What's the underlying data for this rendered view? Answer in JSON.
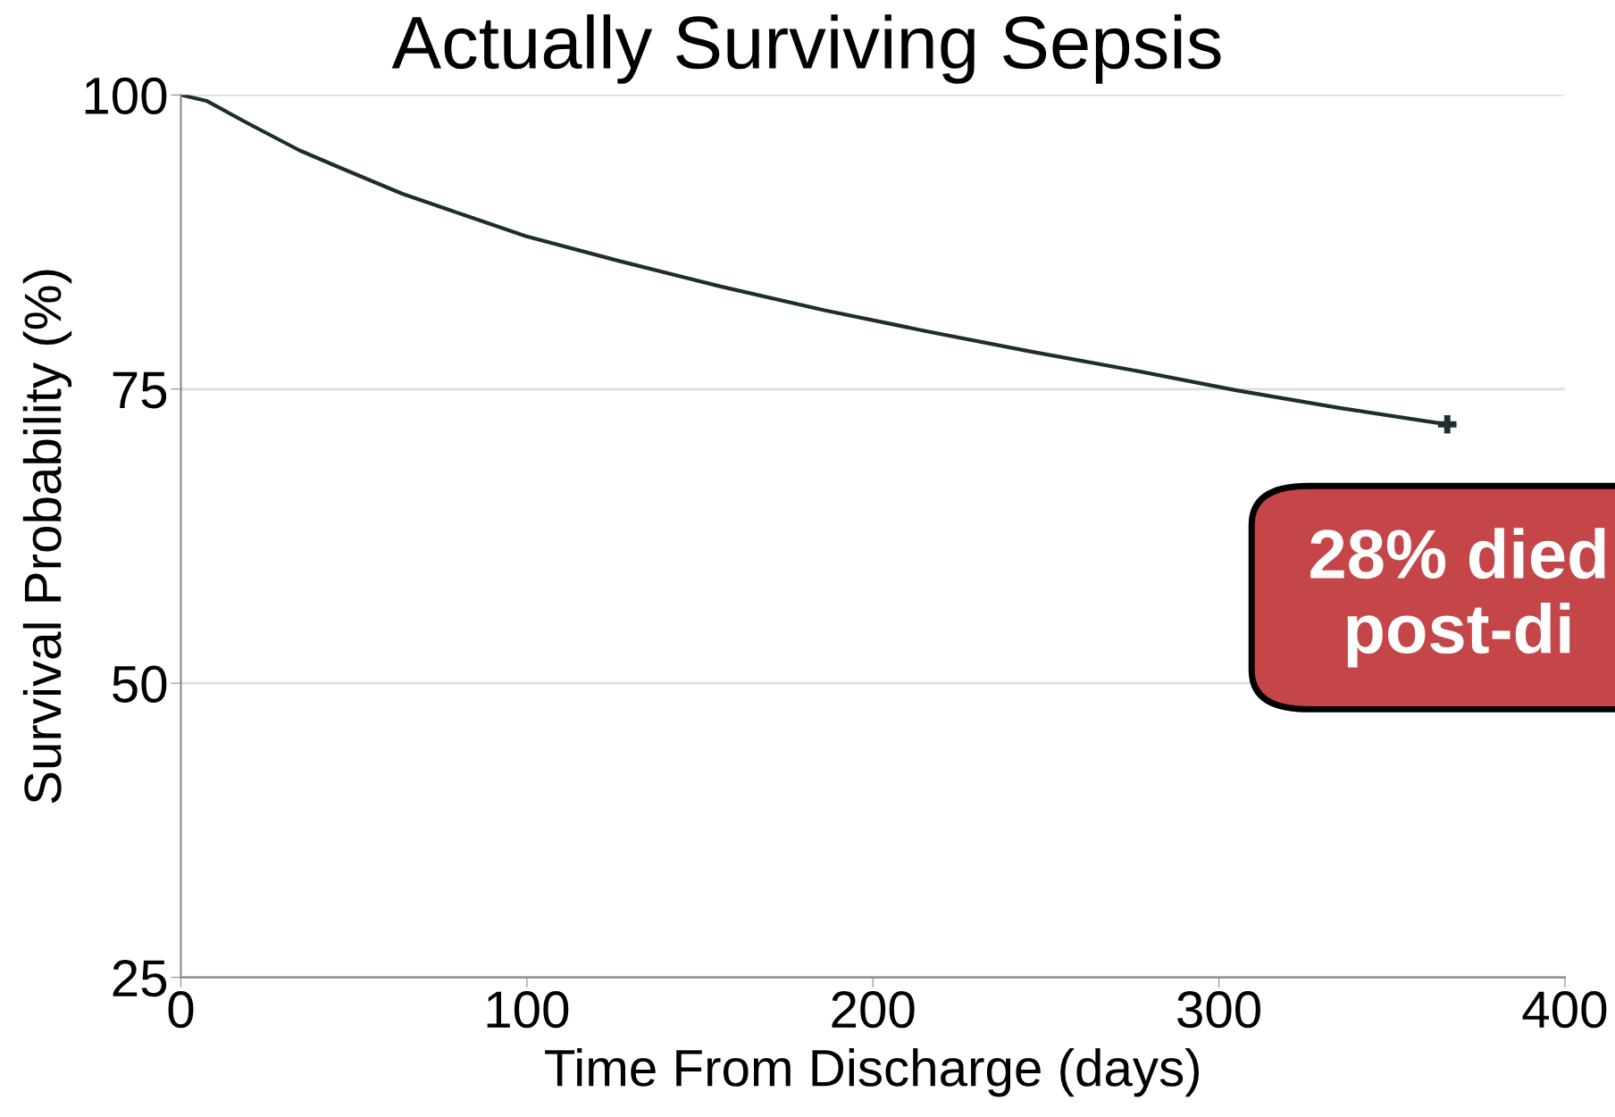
{
  "chart_data": {
    "type": "line",
    "title": "Actually Surviving Sepsis",
    "xlabel": "Time From Discharge (days)",
    "ylabel": "Survival Probability (%)",
    "series": [
      {
        "color": "#1e2d2d",
        "x": [
          0,
          7.4,
          19.3,
          34.2,
          46.1,
          64,
          81.8,
          99.7,
          126.5,
          156.3,
          186,
          215.8,
          245.5,
          275.3,
          305,
          334.8,
          366
        ],
        "values": [
          100,
          99.5,
          97.6,
          95.3,
          93.8,
          91.6,
          89.8,
          88.0,
          85.9,
          83.7,
          81.7,
          79.9,
          78.2,
          76.6,
          74.9,
          73.4,
          72.0
        ]
      },
      {
        "type": "scatter",
        "marker": "cross",
        "color": "#1e2d2d",
        "x": [
          366
        ],
        "values": [
          72.0
        ]
      }
    ],
    "xlim": [
      0,
      400
    ],
    "xticks": [
      0,
      100,
      200,
      300,
      400
    ],
    "ylim": [
      25,
      100
    ],
    "yticks": [
      25,
      50,
      75,
      100
    ],
    "grid": "y",
    "annotations": [
      "28% died\npost-di"
    ]
  }
}
